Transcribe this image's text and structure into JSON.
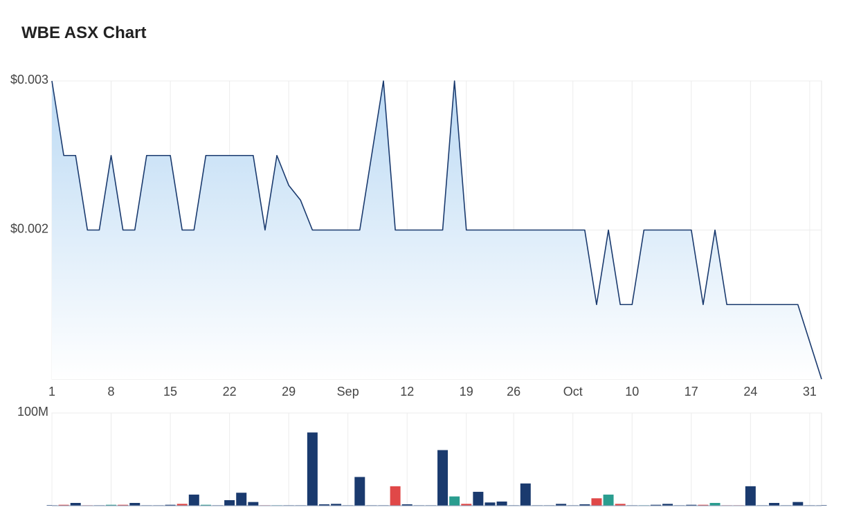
{
  "chart_data": [
    {
      "type": "area",
      "title": "WBE ASX Chart",
      "categories": [
        "1",
        null,
        null,
        null,
        null,
        "8",
        null,
        null,
        null,
        null,
        "15",
        null,
        null,
        null,
        null,
        "22",
        null,
        null,
        null,
        null,
        "29",
        null,
        null,
        null,
        null,
        "Sep",
        null,
        null,
        null,
        null,
        "12",
        null,
        null,
        null,
        null,
        "19",
        null,
        null,
        null,
        "26",
        null,
        null,
        null,
        null,
        "Oct",
        null,
        null,
        null,
        null,
        "10",
        null,
        null,
        null,
        null,
        "17",
        null,
        null,
        null,
        null,
        "24",
        null,
        null,
        null,
        null,
        "31",
        null
      ],
      "values": [
        0.003,
        0.0025,
        0.0025,
        0.002,
        0.002,
        0.0025,
        0.002,
        0.002,
        0.0025,
        0.0025,
        0.0025,
        0.002,
        0.002,
        0.0025,
        0.0025,
        0.0025,
        0.0025,
        0.0025,
        0.002,
        0.0025,
        0.0023,
        0.0022,
        0.002,
        0.002,
        0.002,
        0.002,
        0.002,
        0.0025,
        0.003,
        0.002,
        0.002,
        0.002,
        0.002,
        0.002,
        0.003,
        0.002,
        0.002,
        0.002,
        0.002,
        0.002,
        0.002,
        0.002,
        0.002,
        0.002,
        0.002,
        0.002,
        0.0015,
        0.002,
        0.0015,
        0.0015,
        0.002,
        0.002,
        0.002,
        0.002,
        0.002,
        0.0015,
        0.002,
        0.0015,
        0.0015,
        0.0015,
        0.0015,
        0.0015,
        0.0015,
        0.0015,
        0.00125,
        0.001
      ],
      "color": "#1a3a6e",
      "ylim": [
        0.001,
        0.003
      ],
      "yticks": [
        {
          "value": 0.002,
          "label": "$0.002"
        },
        {
          "value": 0.003,
          "label": "$0.003"
        }
      ],
      "grid": true
    },
    {
      "type": "bar",
      "values": [
        500000,
        1000000,
        3000000,
        500000,
        500000,
        1000000,
        1000000,
        3000000,
        500000,
        500000,
        1000000,
        2000000,
        12000000,
        1000000,
        500000,
        6000000,
        14000000,
        4000000,
        500000,
        500000,
        500000,
        500000,
        79000000,
        1500000,
        2000000,
        500000,
        31000000,
        500000,
        500000,
        21000000,
        1500000,
        500000,
        500000,
        60000000,
        10000000,
        2000000,
        15000000,
        3500000,
        4500000,
        500000,
        24000000,
        500000,
        500000,
        2000000,
        500000,
        1500000,
        8000000,
        12000000,
        2000000,
        500000,
        500000,
        1000000,
        2000000,
        500000,
        1000000,
        1000000,
        3000000,
        500000,
        500000,
        21000000,
        500000,
        3000000,
        500000,
        4000000,
        500000,
        500000
      ],
      "colors": [
        "#1a3a6e",
        "#e04848",
        "#1a3a6e",
        "#e04848",
        "#1a3a6e",
        "#2a9d8f",
        "#e04848",
        "#1a3a6e",
        "#1a3a6e",
        "#1a3a6e",
        "#1a3a6e",
        "#e04848",
        "#1a3a6e",
        "#2a9d8f",
        "#1a3a6e",
        "#1a3a6e",
        "#1a3a6e",
        "#1a3a6e",
        "#e04848",
        "#2a9d8f",
        "#1a3a6e",
        "#1a3a6e",
        "#1a3a6e",
        "#1a3a6e",
        "#1a3a6e",
        "#1a3a6e",
        "#1a3a6e",
        "#1a3a6e",
        "#1a3a6e",
        "#e04848",
        "#1a3a6e",
        "#1a3a6e",
        "#1a3a6e",
        "#1a3a6e",
        "#2a9d8f",
        "#e04848",
        "#1a3a6e",
        "#1a3a6e",
        "#1a3a6e",
        "#1a3a6e",
        "#1a3a6e",
        "#1a3a6e",
        "#1a3a6e",
        "#1a3a6e",
        "#1a3a6e",
        "#1a3a6e",
        "#e04848",
        "#2a9d8f",
        "#e04848",
        "#1a3a6e",
        "#2a9d8f",
        "#1a3a6e",
        "#1a3a6e",
        "#1a3a6e",
        "#1a3a6e",
        "#e04848",
        "#2a9d8f",
        "#e04848",
        "#e04848",
        "#1a3a6e",
        "#1a3a6e",
        "#1a3a6e",
        "#1a3a6e",
        "#1a3a6e",
        "#1a3a6e",
        "#1a3a6e"
      ],
      "ylim": [
        0,
        100000000
      ],
      "yticks": [
        {
          "value": 100000000,
          "label": "100M"
        }
      ],
      "grid": true
    }
  ]
}
